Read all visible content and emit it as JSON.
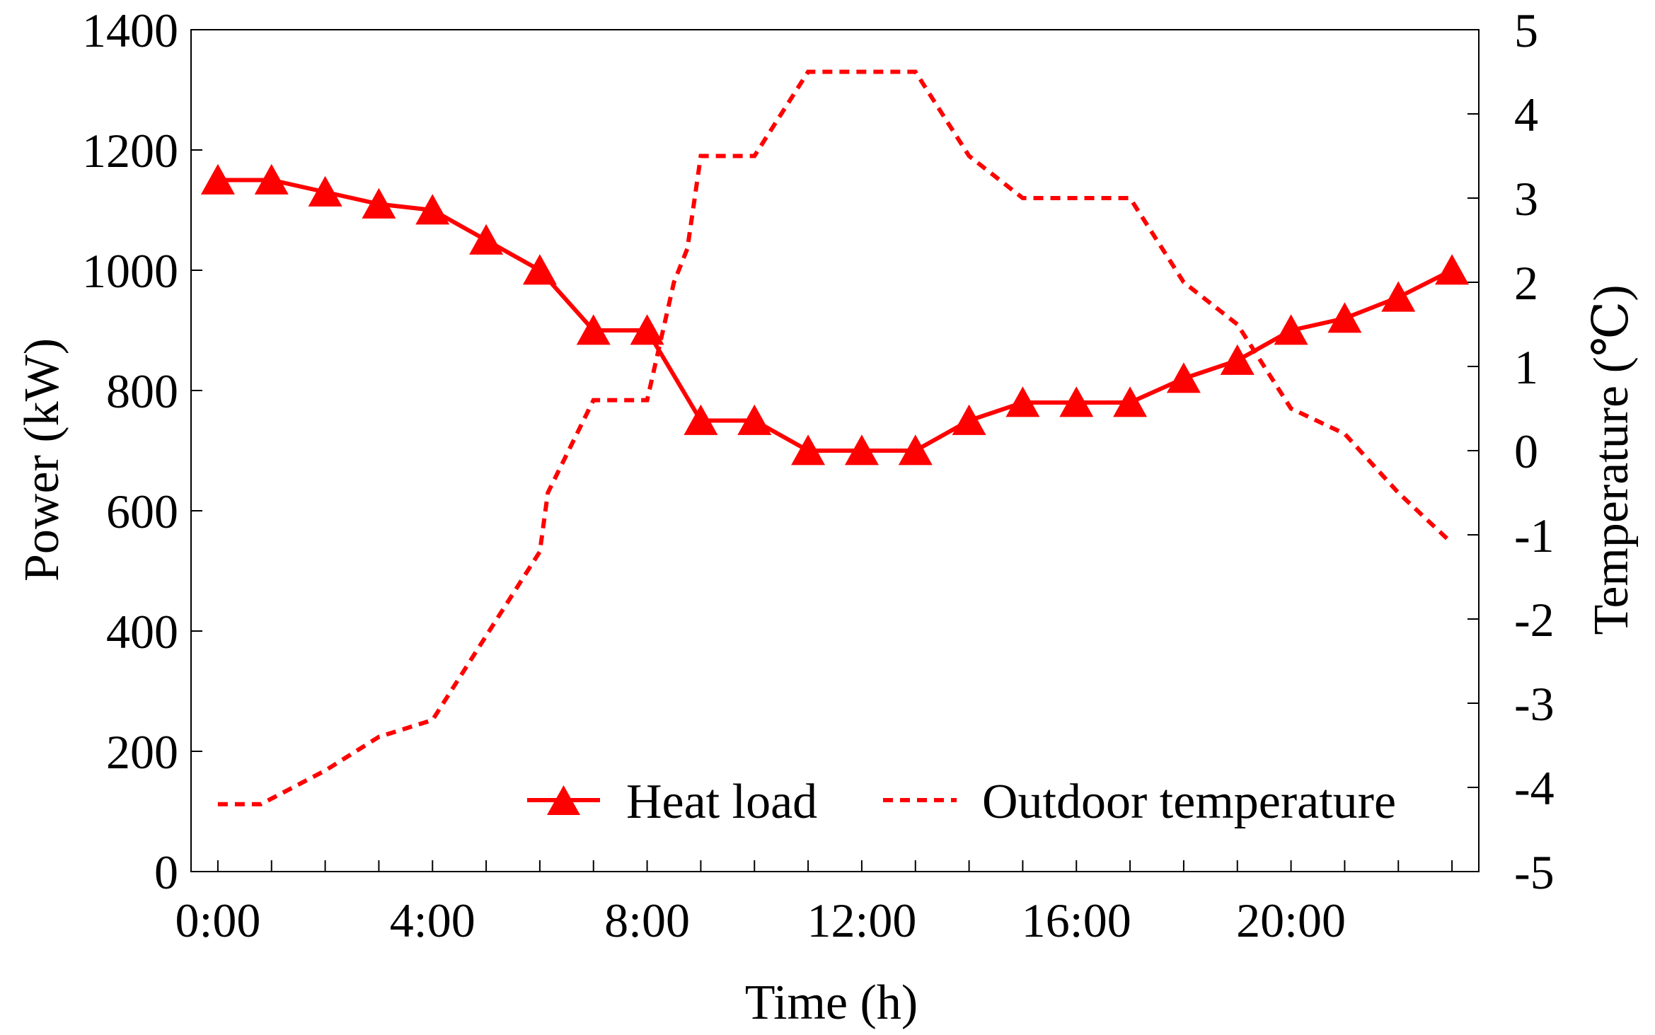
{
  "chart_data": {
    "type": "line",
    "x": [
      "0:00",
      "1:00",
      "2:00",
      "3:00",
      "4:00",
      "5:00",
      "6:00",
      "7:00",
      "8:00",
      "9:00",
      "10:00",
      "11:00",
      "12:00",
      "13:00",
      "14:00",
      "15:00",
      "16:00",
      "17:00",
      "18:00",
      "19:00",
      "20:00",
      "21:00",
      "22:00",
      "23:00"
    ],
    "x_values": [
      0,
      1,
      2,
      3,
      4,
      5,
      6,
      7,
      8,
      9,
      10,
      11,
      12,
      13,
      14,
      15,
      16,
      17,
      18,
      19,
      20,
      21,
      22,
      23
    ],
    "xlim": [
      -0.5,
      23.5
    ],
    "x_ticks": [
      0,
      4,
      8,
      12,
      16,
      20
    ],
    "x_tick_labels": [
      "0:00",
      "4:00",
      "8:00",
      "12:00",
      "16:00",
      "20:00"
    ],
    "xlabel": "Time (h)",
    "ylabel": "Power (kW)",
    "ylim": [
      0,
      1400
    ],
    "y_ticks": [
      0,
      200,
      400,
      600,
      800,
      1000,
      1200,
      1400
    ],
    "y_tick_labels": [
      "0",
      "200",
      "400",
      "600",
      "800",
      "1000",
      "1200",
      "1400"
    ],
    "y2label": "Temperature (℃)",
    "y2lim": [
      -5,
      5
    ],
    "y2_ticks": [
      -5,
      -4,
      -3,
      -2,
      -1,
      0,
      1,
      2,
      3,
      4,
      5
    ],
    "y2_tick_labels": [
      "-5",
      "-4",
      "-3",
      "-2",
      "-1",
      "0",
      "1",
      "2",
      "3",
      "4",
      "5"
    ],
    "legend_position": "bottom-right",
    "series": [
      {
        "name": "Heat load",
        "axis": "left",
        "color": "#ff0000",
        "style": "solid",
        "marker": "triangle",
        "values": [
          1150,
          1150,
          1130,
          1110,
          1100,
          1050,
          1000,
          900,
          900,
          750,
          750,
          700,
          700,
          700,
          750,
          780,
          780,
          780,
          820,
          850,
          900,
          920,
          955,
          1000
        ]
      },
      {
        "name": "Outdoor temperature",
        "axis": "right",
        "color": "#ff0000",
        "style": "dashed",
        "marker": "none",
        "points": [
          [
            0,
            -4.2
          ],
          [
            0.8,
            -4.2
          ],
          [
            2,
            -3.8
          ],
          [
            3,
            -3.4
          ],
          [
            4,
            -3.2
          ],
          [
            5,
            -2.2
          ],
          [
            6,
            -1.2
          ],
          [
            6.15,
            -0.5
          ],
          [
            7,
            0.6
          ],
          [
            8,
            0.6
          ],
          [
            8.5,
            2.0
          ],
          [
            8.75,
            2.4
          ],
          [
            9,
            3.5
          ],
          [
            10,
            3.5
          ],
          [
            11,
            4.5
          ],
          [
            12,
            4.5
          ],
          [
            13,
            4.5
          ],
          [
            14,
            3.5
          ],
          [
            15,
            3.0
          ],
          [
            16,
            3.0
          ],
          [
            17,
            3.0
          ],
          [
            18,
            2.0
          ],
          [
            19,
            1.5
          ],
          [
            20,
            0.5
          ],
          [
            21,
            0.2
          ],
          [
            22,
            -0.5
          ],
          [
            23,
            -1.1
          ]
        ]
      }
    ]
  }
}
